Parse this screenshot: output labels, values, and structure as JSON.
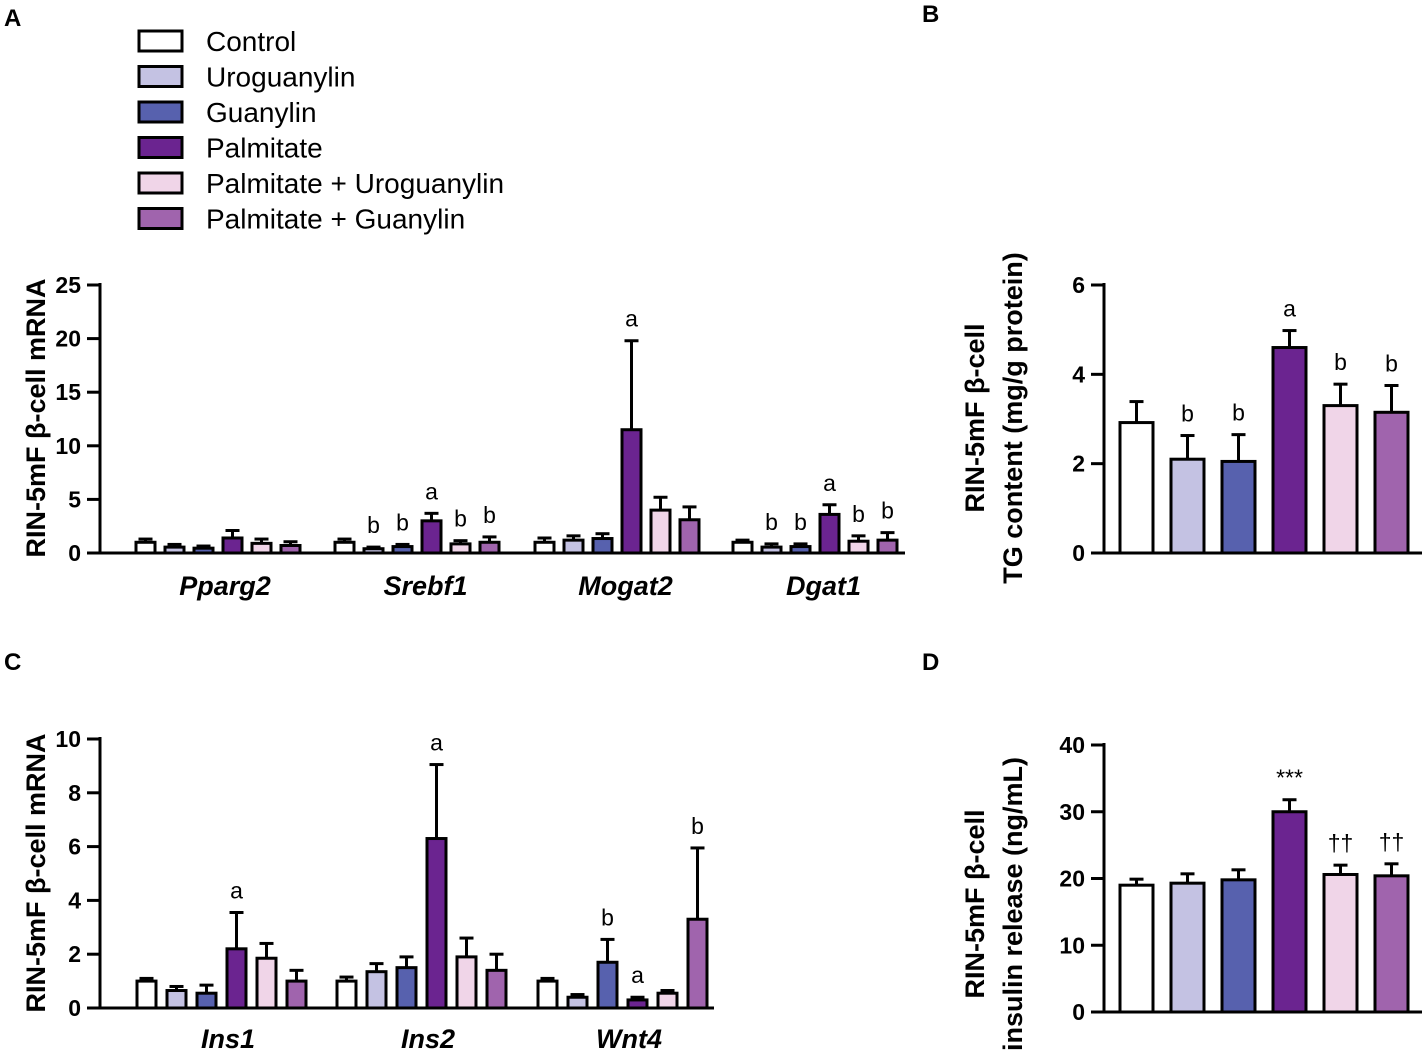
{
  "legend": {
    "items": [
      {
        "label": "Control",
        "color": "#ffffff"
      },
      {
        "label": "Uroguanylin",
        "color": "#c4c2e3"
      },
      {
        "label": "Guanylin",
        "color": "#5761ae"
      },
      {
        "label": "Palmitate",
        "color": "#6b2490"
      },
      {
        "label": "Palmitate + Uroguanylin",
        "color": "#f0d5e8"
      },
      {
        "label": "Palmitate + Guanylin",
        "color": "#a064ad"
      }
    ]
  },
  "chart_data": [
    {
      "panel": "A",
      "type": "bar",
      "ylabel": "RIN-5mF β-cell mRNA",
      "ylim": [
        0,
        25
      ],
      "yticks": [
        "0",
        "5",
        "10",
        "15",
        "20",
        "25"
      ],
      "categories": [
        "Pparg2",
        "Srebf1",
        "Mogat2",
        "Dgat1"
      ],
      "series": [
        {
          "name": "Control",
          "values": [
            1.0,
            1.0,
            1.0,
            1.0
          ],
          "errors": [
            0.3,
            0.3,
            0.4,
            0.2
          ],
          "annotations": [
            "",
            "",
            "",
            ""
          ]
        },
        {
          "name": "Uroguanylin",
          "values": [
            0.55,
            0.4,
            1.2,
            0.55
          ],
          "errors": [
            0.25,
            0.15,
            0.4,
            0.3
          ],
          "annotations": [
            "",
            "b",
            "",
            "b"
          ]
        },
        {
          "name": "Guanylin",
          "values": [
            0.45,
            0.6,
            1.35,
            0.6
          ],
          "errors": [
            0.2,
            0.2,
            0.45,
            0.25
          ],
          "annotations": [
            "",
            "b",
            "",
            "b"
          ]
        },
        {
          "name": "Palmitate",
          "values": [
            1.4,
            3.0,
            11.5,
            3.6
          ],
          "errors": [
            0.7,
            0.7,
            8.3,
            0.9
          ],
          "annotations": [
            "",
            "a",
            "a",
            "a"
          ]
        },
        {
          "name": "Palmitate + Uroguanylin",
          "values": [
            0.9,
            0.85,
            4.0,
            1.1
          ],
          "errors": [
            0.4,
            0.3,
            1.2,
            0.5
          ],
          "annotations": [
            "",
            "b",
            "",
            "b"
          ]
        },
        {
          "name": "Palmitate + Guanylin",
          "values": [
            0.7,
            1.0,
            3.1,
            1.2
          ],
          "errors": [
            0.35,
            0.5,
            1.2,
            0.7
          ],
          "annotations": [
            "",
            "b",
            "",
            "b"
          ]
        }
      ]
    },
    {
      "panel": "B",
      "type": "bar",
      "ylabel": [
        "RIN-5mF β-cell",
        "TG content (mg/g protein)"
      ],
      "ylim": [
        0,
        6
      ],
      "yticks": [
        "0",
        "2",
        "4",
        "6"
      ],
      "categories": [
        "Control",
        "Uroguanylin",
        "Guanylin",
        "Palmitate",
        "Palmitate + Uroguanylin",
        "Palmitate + Guanylin"
      ],
      "values": [
        2.92,
        2.1,
        2.05,
        4.6,
        3.3,
        3.15
      ],
      "errors": [
        0.47,
        0.53,
        0.6,
        0.38,
        0.48,
        0.6
      ],
      "annotations": [
        "",
        "b",
        "b",
        "a",
        "b",
        "b"
      ]
    },
    {
      "panel": "C",
      "type": "bar",
      "ylabel": "RIN-5mF β-cell mRNA",
      "ylim": [
        0,
        10
      ],
      "yticks": [
        "0",
        "2",
        "4",
        "6",
        "8",
        "10"
      ],
      "categories": [
        "Ins1",
        "Ins2",
        "Wnt4"
      ],
      "series": [
        {
          "name": "Control",
          "values": [
            1.0,
            1.0,
            1.0
          ],
          "errors": [
            0.1,
            0.15,
            0.1
          ],
          "annotations": [
            "",
            "",
            ""
          ]
        },
        {
          "name": "Uroguanylin",
          "values": [
            0.65,
            1.35,
            0.4
          ],
          "errors": [
            0.15,
            0.3,
            0.1
          ],
          "annotations": [
            "",
            "",
            ""
          ]
        },
        {
          "name": "Guanylin",
          "values": [
            0.55,
            1.5,
            1.7
          ],
          "errors": [
            0.3,
            0.4,
            0.85
          ],
          "annotations": [
            "",
            "",
            "b"
          ]
        },
        {
          "name": "Palmitate",
          "values": [
            2.2,
            6.3,
            0.3
          ],
          "errors": [
            1.35,
            2.75,
            0.1
          ],
          "annotations": [
            "a",
            "a",
            "a"
          ]
        },
        {
          "name": "Palmitate + Uroguanylin",
          "values": [
            1.85,
            1.9,
            0.55
          ],
          "errors": [
            0.55,
            0.7,
            0.1
          ],
          "annotations": [
            "",
            "",
            ""
          ]
        },
        {
          "name": "Palmitate + Guanylin",
          "values": [
            1.0,
            1.4,
            3.3
          ],
          "errors": [
            0.4,
            0.6,
            2.65
          ],
          "annotations": [
            "",
            "",
            "b"
          ]
        }
      ]
    },
    {
      "panel": "D",
      "type": "bar",
      "ylabel": [
        "RIN-5mF β-cell",
        "insulin release (ng/mL)"
      ],
      "ylim": [
        0,
        40
      ],
      "yticks": [
        "0",
        "10",
        "20",
        "30",
        "40"
      ],
      "categories": [
        "Control",
        "Uroguanylin",
        "Guanylin",
        "Palmitate",
        "Palmitate + Uroguanylin",
        "Palmitate + Guanylin"
      ],
      "values": [
        19.0,
        19.3,
        19.8,
        30.0,
        20.6,
        20.4
      ],
      "errors": [
        0.9,
        1.4,
        1.5,
        1.8,
        1.4,
        1.8
      ],
      "annotations": [
        "",
        "",
        "",
        "***",
        "††",
        "††"
      ]
    }
  ]
}
